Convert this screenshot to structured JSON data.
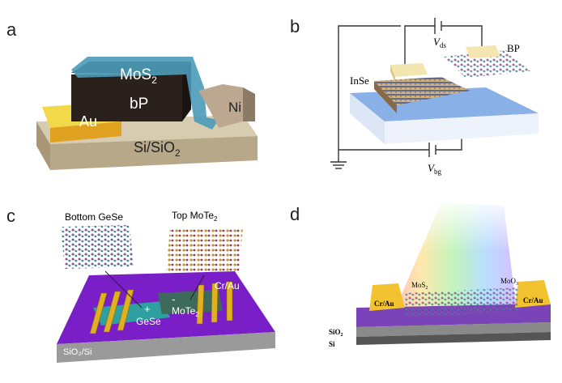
{
  "panels": {
    "a": {
      "letter": "a",
      "labels": {
        "mos2": {
          "text": "MoS",
          "sub": "2"
        },
        "bp": "bP",
        "au": "Au",
        "ni": "Ni",
        "substrate": {
          "text": "Si/SiO",
          "sub": "2"
        }
      }
    },
    "b": {
      "letter": "b",
      "labels": {
        "vds": {
          "text": "V",
          "sub": "ds"
        },
        "bp": "BP",
        "inse": "InSe",
        "vbg": {
          "text": "V",
          "sub": "bg"
        }
      }
    },
    "c": {
      "letter": "c",
      "labels": {
        "bottom": "Bottom GeSe",
        "top": {
          "text": "Top MoTe",
          "sub": "2"
        },
        "contact": "Cr/Au",
        "plus": "+",
        "gese": "GeSe",
        "minus": "-",
        "mote2": {
          "text": "MoTe",
          "sub": "2"
        },
        "substrate": "SiO₂/Si"
      }
    },
    "d": {
      "letter": "d",
      "labels": {
        "mos2": {
          "text": "MoS",
          "sub": "2"
        },
        "moo3": {
          "text": "MoO",
          "sub": "3"
        },
        "contact_left": "Cr/Au",
        "contact_right": "Cr/Au",
        "sio2": {
          "text": "SiO",
          "sub": "2"
        },
        "si": "Si"
      }
    }
  }
}
